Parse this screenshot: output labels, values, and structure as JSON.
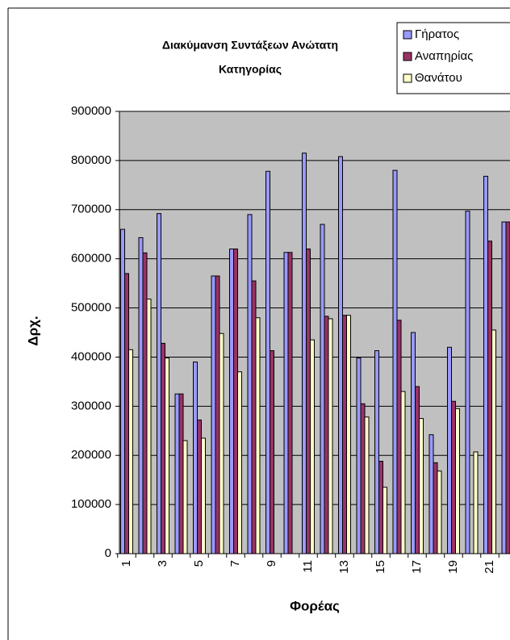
{
  "chart_data": {
    "type": "bar",
    "title": [
      "Διακύμανση Συντάξεων Ανώτατη",
      "Κατηγορίας"
    ],
    "y_label": "Δρχ.",
    "x_label": "Φορέας",
    "categories": [
      "1",
      null,
      "3",
      null,
      "5",
      null,
      "7",
      null,
      "9",
      null,
      "11",
      null,
      "13",
      null,
      "15",
      null,
      "17",
      null,
      "19",
      null,
      "21",
      null
    ],
    "series": [
      {
        "name": "Γήρατος",
        "color": "#9999ff",
        "values": [
          660000,
          643000,
          692000,
          325000,
          390000,
          565000,
          620000,
          690000,
          778000,
          613000,
          815000,
          670000,
          808000,
          398000,
          413000,
          780000,
          450000,
          242000,
          420000,
          697000,
          768000,
          675000
        ]
      },
      {
        "name": "Αναπηρίας",
        "color": "#993366",
        "values": [
          570000,
          612000,
          428000,
          325000,
          272000,
          565000,
          620000,
          555000,
          413000,
          613000,
          620000,
          483000,
          485000,
          305000,
          188000,
          475000,
          340000,
          185000,
          310000,
          null,
          636000,
          675000
        ]
      },
      {
        "name": "Θανάτου",
        "color": "#ffffcc",
        "values": [
          415000,
          518000,
          398000,
          230000,
          235000,
          448000,
          370000,
          480000,
          null,
          null,
          435000,
          478000,
          485000,
          278000,
          135000,
          330000,
          275000,
          168000,
          295000,
          207000,
          455000,
          null
        ]
      }
    ],
    "ylim": [
      0,
      900000
    ],
    "yticks": [
      0,
      100000,
      200000,
      300000,
      400000,
      500000,
      600000,
      700000,
      800000,
      900000
    ],
    "grid": true,
    "legend": "top-right"
  }
}
